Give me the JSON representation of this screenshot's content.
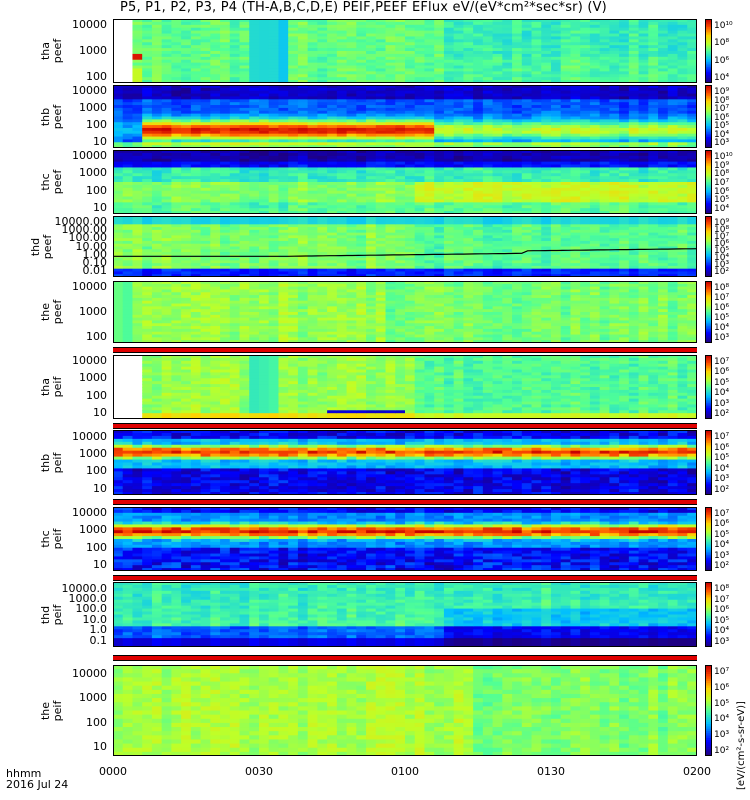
{
  "title": "P5, P1, P2, P3, P4 (TH-A,B,C,D,E) PEIF,PEEF EFlux eV/(eV*cm²*sec*sr) (V)",
  "x_caption": {
    "hhmm": "hhmm",
    "date": "2016 Jul 24"
  },
  "colorbar_unit": "[eV/(cm²-s-sr-eV)]",
  "colors": {
    "spectrogram_low": "#1a00a0",
    "spectrogram_mid": "#7fff5a",
    "spectrogram_high": "#d80000",
    "separator_red": "#e00000",
    "frame": "#000000"
  },
  "chart_data": [
    {
      "type": "heatmap",
      "panel": "tha-peef",
      "ylabel": [
        "tha",
        "peef"
      ],
      "y_ticks": [
        "10000",
        "1000",
        "100"
      ],
      "x_ticks": [
        "0000",
        "0030",
        "0100",
        "0130",
        "0200"
      ],
      "colorbar_ticks": [
        "10¹⁰",
        "10⁸",
        "10⁶",
        "10⁴"
      ],
      "x_range_hhmm": [
        "0000",
        "0200"
      ],
      "scale": "log",
      "dominant_level": "medium"
    },
    {
      "type": "heatmap",
      "panel": "thb-peef",
      "ylabel": [
        "thb",
        "peef"
      ],
      "y_ticks": [
        "10000",
        "1000",
        "100",
        "10"
      ],
      "colorbar_ticks": [
        "10⁹",
        "10⁸",
        "10⁷",
        "10⁶",
        "10⁵",
        "10⁴",
        "10³"
      ],
      "scale": "log",
      "feature": "intense band near 100 eV from 0005 to 0110"
    },
    {
      "type": "heatmap",
      "panel": "thc-peef",
      "ylabel": [
        "thc",
        "peef"
      ],
      "y_ticks": [
        "10000",
        "1000",
        "100",
        "10"
      ],
      "colorbar_ticks": [
        "10¹⁰",
        "10⁹",
        "10⁸",
        "10⁷",
        "10⁶",
        "10⁵",
        "10⁴"
      ],
      "scale": "log"
    },
    {
      "type": "heatmap",
      "panel": "thd-peef",
      "ylabel": [
        "thd",
        "peef"
      ],
      "y_ticks": [
        "10000.00",
        "1000.00",
        "100.00",
        "10.00",
        "1.00",
        "0.10",
        "0.01"
      ],
      "colorbar_ticks": [
        "10⁹",
        "10⁸",
        "10⁷",
        "10⁶",
        "10⁵",
        "10⁴",
        "10³",
        "10²"
      ],
      "scale": "log",
      "overlay": "black line (spacecraft potential) near 3 rising to 5"
    },
    {
      "type": "heatmap",
      "panel": "the-peef",
      "ylabel": [
        "the",
        "peef"
      ],
      "y_ticks": [
        "10000",
        "1000",
        "100"
      ],
      "colorbar_ticks": [
        "10⁸",
        "10⁷",
        "10⁶",
        "10⁵",
        "10⁴",
        "10³"
      ],
      "scale": "log"
    },
    {
      "type": "heatmap",
      "panel": "tha-peif",
      "ylabel": [
        "tha",
        "peif"
      ],
      "y_ticks": [
        "10000",
        "1000",
        "100",
        "10"
      ],
      "colorbar_ticks": [
        "10⁷",
        "10⁶",
        "10⁵",
        "10⁴",
        "10³",
        "10²"
      ],
      "scale": "log"
    },
    {
      "type": "heatmap",
      "panel": "thb-peif",
      "ylabel": [
        "thb",
        "peif"
      ],
      "y_ticks": [
        "10000",
        "1000",
        "100",
        "10"
      ],
      "colorbar_ticks": [
        "10⁷",
        "10⁶",
        "10⁵",
        "10⁴",
        "10³",
        "10²"
      ],
      "scale": "log",
      "feature": "intense band near 1000 eV"
    },
    {
      "type": "heatmap",
      "panel": "thc-peif",
      "ylabel": [
        "thc",
        "peif"
      ],
      "y_ticks": [
        "10000",
        "1000",
        "100",
        "10"
      ],
      "colorbar_ticks": [
        "10⁷",
        "10⁶",
        "10⁵",
        "10⁴",
        "10³",
        "10²"
      ],
      "scale": "log",
      "feature": "intense band near 1000 eV"
    },
    {
      "type": "heatmap",
      "panel": "thd-peif",
      "ylabel": [
        "thd",
        "peif"
      ],
      "y_ticks": [
        "10000.0",
        "1000.0",
        "100.0",
        "10.0",
        "1.0",
        "0.1"
      ],
      "colorbar_ticks": [
        "10⁸",
        "10⁷",
        "10⁶",
        "10⁵",
        "10⁴",
        "10³"
      ],
      "scale": "log"
    },
    {
      "type": "heatmap",
      "panel": "the-peif",
      "ylabel": [
        "the",
        "peif"
      ],
      "y_ticks": [
        "10000",
        "1000",
        "100",
        "10"
      ],
      "colorbar_ticks": [
        "10⁷",
        "10⁶",
        "10⁵",
        "10⁴",
        "10³",
        "10²"
      ],
      "scale": "log"
    }
  ]
}
